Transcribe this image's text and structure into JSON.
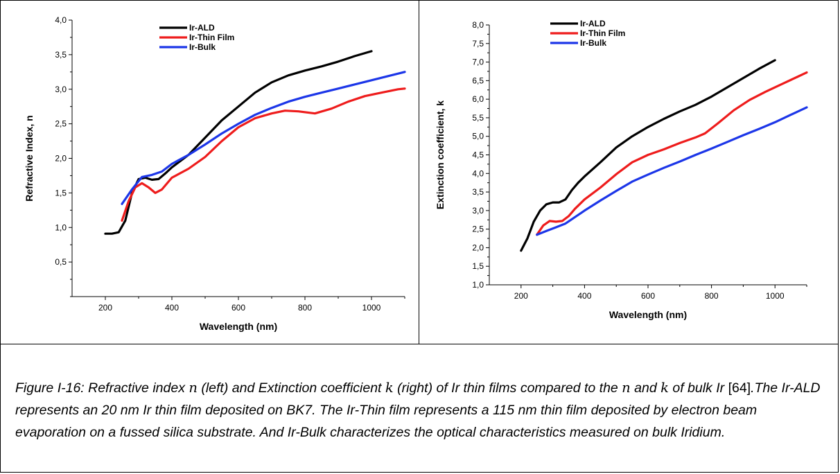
{
  "chart_data": [
    {
      "type": "line",
      "xlabel": "Wavelength (nm)",
      "ylabel": "Refractive Index, n",
      "xlim": [
        100,
        1100
      ],
      "ylim": [
        0.0,
        4.0
      ],
      "xticks": [
        200,
        400,
        600,
        800,
        1000
      ],
      "yticks": [
        0.5,
        1.0,
        1.5,
        2.0,
        2.5,
        3.0,
        3.5,
        4.0
      ],
      "xtick_labels": [
        "200",
        "400",
        "600",
        "800",
        "1000"
      ],
      "ytick_labels": [
        "0,5",
        "1,0",
        "1,5",
        "2,0",
        "2,5",
        "3,0",
        "3,5",
        "4,0"
      ],
      "legend_position": "top-center",
      "grid": false,
      "series": [
        {
          "name": "Ir-ALD",
          "color": "#000000",
          "x": [
            200,
            220,
            240,
            260,
            280,
            300,
            320,
            340,
            360,
            380,
            400,
            450,
            500,
            550,
            600,
            650,
            700,
            750,
            800,
            850,
            900,
            950,
            1000
          ],
          "y": [
            0.91,
            0.91,
            0.93,
            1.1,
            1.5,
            1.7,
            1.72,
            1.69,
            1.7,
            1.78,
            1.87,
            2.05,
            2.3,
            2.55,
            2.75,
            2.95,
            3.1,
            3.2,
            3.27,
            3.33,
            3.4,
            3.48,
            3.55
          ]
        },
        {
          "name": "Ir-Thin Film",
          "color": "#ee1c1c",
          "x": [
            250,
            270,
            290,
            310,
            330,
            350,
            370,
            400,
            450,
            500,
            550,
            600,
            650,
            700,
            740,
            780,
            830,
            880,
            930,
            980,
            1030,
            1080,
            1100
          ],
          "y": [
            1.1,
            1.38,
            1.58,
            1.64,
            1.58,
            1.5,
            1.55,
            1.72,
            1.85,
            2.02,
            2.25,
            2.45,
            2.58,
            2.65,
            2.69,
            2.68,
            2.65,
            2.72,
            2.82,
            2.9,
            2.95,
            3.0,
            3.01
          ]
        },
        {
          "name": "Ir-Bulk",
          "color": "#1c36e8",
          "x": [
            250,
            280,
            310,
            340,
            370,
            400,
            450,
            500,
            550,
            600,
            650,
            700,
            750,
            800,
            850,
            900,
            950,
            1000,
            1050,
            1100
          ],
          "y": [
            1.34,
            1.55,
            1.73,
            1.76,
            1.81,
            1.92,
            2.05,
            2.2,
            2.36,
            2.5,
            2.63,
            2.73,
            2.82,
            2.89,
            2.95,
            3.01,
            3.07,
            3.13,
            3.19,
            3.25
          ]
        }
      ]
    },
    {
      "type": "line",
      "xlabel": "Wavelength (nm)",
      "ylabel": "Extinction coefficient, k",
      "xlim": [
        100,
        1100
      ],
      "ylim": [
        1.0,
        8.0
      ],
      "xticks": [
        200,
        400,
        600,
        800,
        1000
      ],
      "yticks": [
        1.0,
        1.5,
        2.0,
        2.5,
        3.0,
        3.5,
        4.0,
        4.5,
        5.0,
        5.5,
        6.0,
        6.5,
        7.0,
        7.5,
        8.0
      ],
      "xtick_labels": [
        "200",
        "400",
        "600",
        "800",
        "1000"
      ],
      "ytick_labels": [
        "1,0",
        "1,5",
        "2,0",
        "2,5",
        "3,0",
        "3,5",
        "4,0",
        "4,5",
        "5,0",
        "5,5",
        "6,0",
        "6,5",
        "7,0",
        "7,5",
        "8,0"
      ],
      "legend_position": "top-left",
      "grid": false,
      "series": [
        {
          "name": "Ir-ALD",
          "color": "#000000",
          "x": [
            200,
            220,
            240,
            260,
            280,
            300,
            320,
            340,
            360,
            380,
            400,
            450,
            500,
            550,
            600,
            650,
            700,
            750,
            800,
            850,
            900,
            950,
            1000
          ],
          "y": [
            1.92,
            2.25,
            2.7,
            3.0,
            3.17,
            3.22,
            3.22,
            3.3,
            3.55,
            3.75,
            3.92,
            4.3,
            4.7,
            5.0,
            5.25,
            5.47,
            5.67,
            5.85,
            6.07,
            6.32,
            6.57,
            6.82,
            7.05
          ]
        },
        {
          "name": "Ir-Thin Film",
          "color": "#ee1c1c",
          "x": [
            250,
            270,
            290,
            310,
            330,
            350,
            370,
            400,
            450,
            500,
            550,
            600,
            650,
            700,
            750,
            780,
            820,
            870,
            920,
            970,
            1020,
            1070,
            1100
          ],
          "y": [
            2.35,
            2.6,
            2.72,
            2.7,
            2.72,
            2.85,
            3.05,
            3.3,
            3.62,
            3.98,
            4.3,
            4.5,
            4.65,
            4.82,
            4.97,
            5.08,
            5.35,
            5.7,
            5.98,
            6.2,
            6.4,
            6.6,
            6.72
          ]
        },
        {
          "name": "Ir-Bulk",
          "color": "#1c36e8",
          "x": [
            250,
            280,
            310,
            340,
            400,
            450,
            500,
            550,
            600,
            650,
            700,
            750,
            800,
            850,
            900,
            950,
            1000,
            1050,
            1100
          ],
          "y": [
            2.35,
            2.45,
            2.55,
            2.65,
            3.0,
            3.27,
            3.53,
            3.78,
            3.97,
            4.15,
            4.32,
            4.5,
            4.67,
            4.85,
            5.03,
            5.2,
            5.38,
            5.58,
            5.78
          ]
        }
      ]
    }
  ],
  "caption": {
    "part1": "Figure I-16: Refractive index ",
    "var_n1": "n",
    "part2": " (left) and Extinction coefficient ",
    "var_k1": "k",
    "part3": " (right) of Ir thin films compared to the ",
    "var_n2": "n",
    "part4": " and ",
    "var_k2": "k",
    "part5": " of bulk Ir ",
    "ref": "[64]",
    "part6": ".The  Ir-ALD represents an 20 nm Ir thin film deposited on BK7. The Ir-Thin film represents a 115 nm thin film deposited by electron beam evaporation on a fussed silica substrate. And Ir-Bulk characterizes the optical characteristics measured on bulk Iridium."
  }
}
